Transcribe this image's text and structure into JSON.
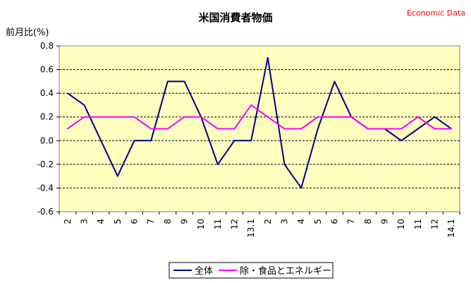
{
  "chart_data": {
    "type": "line",
    "title": "米国消費者物価",
    "source_label": "Economic Data",
    "ylabel": "前月比(%)",
    "xlabel": "",
    "ylim": [
      -0.6,
      0.8
    ],
    "yticks": [
      "0.8",
      "0.6",
      "0.4",
      "0.2",
      "0.0",
      "-0.2",
      "-0.4",
      "-0.6"
    ],
    "ytick_values": [
      0.8,
      0.6,
      0.4,
      0.2,
      0.0,
      -0.2,
      -0.4,
      -0.6
    ],
    "grid": true,
    "legend_position": "bottom",
    "background_color": "#ffffc0",
    "categories": [
      "2",
      "3",
      "4",
      "5",
      "6",
      "7",
      "8",
      "9",
      "10",
      "11",
      "12",
      "13.1",
      "2",
      "3",
      "4",
      "5",
      "6",
      "7",
      "8",
      "9",
      "10",
      "11",
      "12",
      "14.1"
    ],
    "series": [
      {
        "name": "全体",
        "color": "#000080",
        "values": [
          0.4,
          0.3,
          0.0,
          -0.3,
          0.0,
          0.0,
          0.5,
          0.5,
          0.2,
          -0.2,
          0.0,
          0.0,
          0.7,
          -0.2,
          -0.4,
          0.1,
          0.5,
          0.2,
          0.1,
          0.1,
          0.0,
          0.1,
          0.2,
          0.1
        ]
      },
      {
        "name": "除・食品とエネルギー",
        "color": "#ff00ff",
        "values": [
          0.1,
          0.2,
          0.2,
          0.2,
          0.2,
          0.1,
          0.1,
          0.2,
          0.2,
          0.1,
          0.1,
          0.3,
          0.2,
          0.1,
          0.1,
          0.2,
          0.2,
          0.2,
          0.1,
          0.1,
          0.1,
          0.2,
          0.1,
          0.1
        ]
      }
    ]
  }
}
